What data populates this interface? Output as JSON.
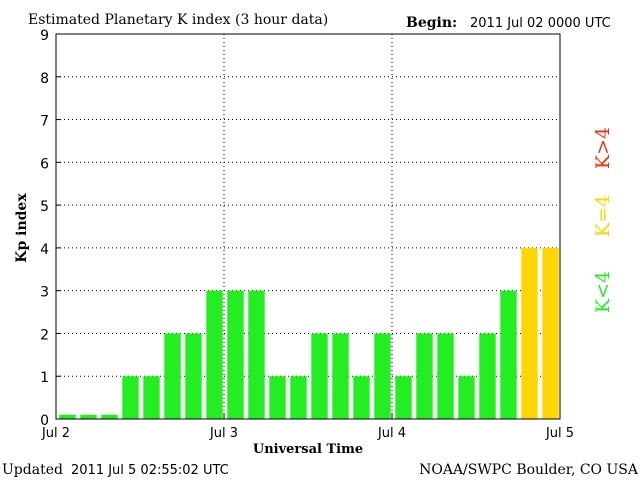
{
  "chart_data": {
    "type": "bar",
    "title": "Estimated Planetary K index (3 hour data)",
    "begin_label": "Begin:",
    "begin_value": "2011 Jul 02 0000 UTC",
    "xlabel": "Universal Time",
    "ylabel": "Kp index",
    "ylim": [
      0,
      9
    ],
    "yticks": [
      "0",
      "1",
      "2",
      "3",
      "4",
      "5",
      "6",
      "7",
      "8",
      "9"
    ],
    "xtick_labels": [
      "Jul 2",
      "Jul 3",
      "Jul 4",
      "Jul 5"
    ],
    "grid": true,
    "values": [
      0,
      0,
      0,
      1,
      1,
      2,
      2,
      3,
      3,
      3,
      1,
      1,
      2,
      2,
      1,
      2,
      1,
      2,
      2,
      1,
      2,
      3,
      4,
      4
    ],
    "colors": {
      "low": "#22ee22",
      "mid": "#ffd700",
      "high": "#ee3311"
    },
    "legend": [
      {
        "label": "K<4",
        "color": "#22ee22"
      },
      {
        "label": "K=4",
        "color": "#ffd700"
      },
      {
        "label": "K>4",
        "color": "#ee3311"
      }
    ]
  },
  "footer": {
    "updated_label": "Updated",
    "updated_value": "2011 Jul  5 02:55:02 UTC",
    "source": "NOAA/SWPC Boulder, CO USA"
  }
}
